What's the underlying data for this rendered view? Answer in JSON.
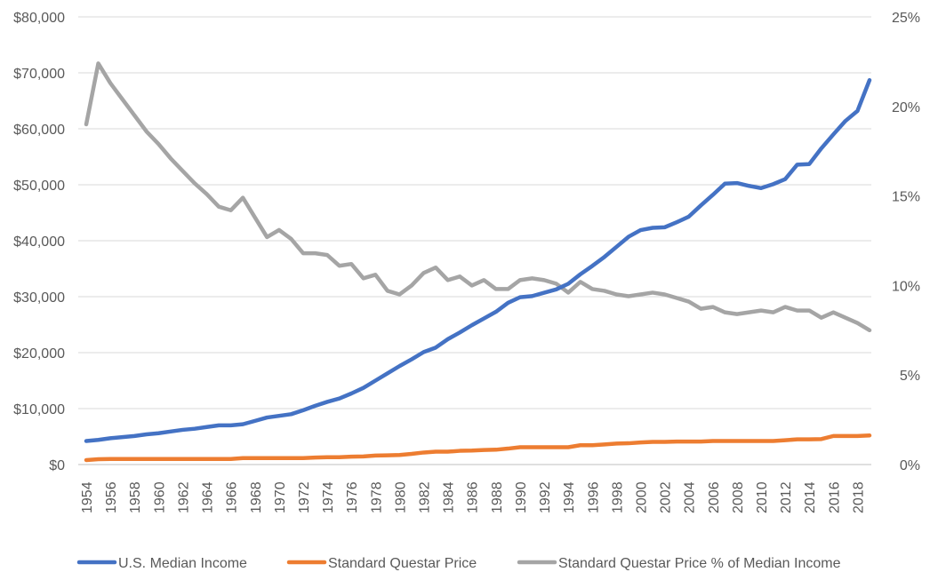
{
  "chart_data": {
    "type": "line",
    "title": "",
    "xlabel": "",
    "ylabel_left": "",
    "ylabel_right": "",
    "x": [
      1954,
      1955,
      1956,
      1957,
      1958,
      1959,
      1960,
      1961,
      1962,
      1963,
      1964,
      1965,
      1966,
      1967,
      1968,
      1969,
      1970,
      1971,
      1972,
      1973,
      1974,
      1975,
      1976,
      1977,
      1978,
      1979,
      1980,
      1981,
      1982,
      1983,
      1984,
      1985,
      1986,
      1987,
      1988,
      1989,
      1990,
      1991,
      1992,
      1993,
      1994,
      1995,
      1996,
      1997,
      1998,
      1999,
      2000,
      2001,
      2002,
      2003,
      2004,
      2005,
      2006,
      2007,
      2008,
      2009,
      2010,
      2011,
      2012,
      2013,
      2014,
      2015,
      2016,
      2017,
      2018,
      2019
    ],
    "x_tick_labels": [
      "1954",
      "1956",
      "1958",
      "1960",
      "1962",
      "1964",
      "1966",
      "1968",
      "1970",
      "1972",
      "1974",
      "1976",
      "1978",
      "1980",
      "1982",
      "1984",
      "1986",
      "1988",
      "1990",
      "1992",
      "1994",
      "1996",
      "1998",
      "2000",
      "2002",
      "2004",
      "2006",
      "2008",
      "2010",
      "2012",
      "2014",
      "2016",
      "2018"
    ],
    "y_left": {
      "lim": [
        0,
        80000
      ],
      "ticks": [
        0,
        10000,
        20000,
        30000,
        40000,
        50000,
        60000,
        70000,
        80000
      ],
      "tick_labels": [
        "$0",
        "$10,000",
        "$20,000",
        "$30,000",
        "$40,000",
        "$50,000",
        "$60,000",
        "$70,000",
        "$80,000"
      ]
    },
    "y_right": {
      "lim": [
        0,
        0.25
      ],
      "ticks": [
        0,
        0.05,
        0.1,
        0.15,
        0.2,
        0.25
      ],
      "tick_labels": [
        "0%",
        "5%",
        "10%",
        "15%",
        "20%",
        "25%"
      ]
    },
    "grid": true,
    "legend_position": "bottom",
    "series": [
      {
        "name": "U.S. Median Income",
        "axis": "left",
        "color": "#4472c4",
        "values": [
          4200,
          4400,
          4700,
          4900,
          5100,
          5400,
          5600,
          5900,
          6200,
          6400,
          6700,
          7000,
          7000,
          7200,
          7800,
          8400,
          8700,
          9000,
          9700,
          10500,
          11200,
          11800,
          12700,
          13700,
          15000,
          16300,
          17600,
          18800,
          20100,
          20900,
          22400,
          23600,
          24900,
          26100,
          27300,
          28900,
          29900,
          30100,
          30700,
          31300,
          32300,
          34000,
          35500,
          37100,
          38900,
          40700,
          41900,
          42300,
          42400,
          43300,
          44300,
          46300,
          48200,
          50200,
          50300,
          49800,
          49400,
          50100,
          51000,
          53600,
          53700,
          56500,
          59000,
          61400,
          63200,
          68700
        ]
      },
      {
        "name": "Standard Questar Price",
        "axis": "left",
        "color": "#ed7d31",
        "values": [
          800,
          950,
          1000,
          1000,
          1000,
          1000,
          1000,
          1000,
          1000,
          1000,
          1000,
          1000,
          1000,
          1150,
          1150,
          1150,
          1150,
          1150,
          1150,
          1250,
          1300,
          1300,
          1400,
          1450,
          1600,
          1650,
          1700,
          1900,
          2150,
          2300,
          2300,
          2450,
          2500,
          2600,
          2650,
          2850,
          3100,
          3100,
          3100,
          3100,
          3100,
          3450,
          3450,
          3600,
          3750,
          3800,
          3950,
          4050,
          4050,
          4100,
          4100,
          4100,
          4200,
          4200,
          4200,
          4200,
          4200,
          4200,
          4350,
          4500,
          4500,
          4550,
          5100,
          5100,
          5100,
          5200
        ]
      },
      {
        "name": "Standard Questar Price % of Median Income",
        "axis": "right",
        "color": "#a5a5a5",
        "values": [
          0.19,
          0.224,
          0.213,
          0.204,
          0.195,
          0.186,
          0.179,
          0.171,
          0.164,
          0.157,
          0.151,
          0.144,
          0.142,
          0.149,
          0.138,
          0.127,
          0.131,
          0.126,
          0.118,
          0.118,
          0.117,
          0.111,
          0.112,
          0.104,
          0.106,
          0.097,
          0.095,
          0.1,
          0.107,
          0.11,
          0.103,
          0.105,
          0.1,
          0.103,
          0.098,
          0.098,
          0.103,
          0.104,
          0.103,
          0.101,
          0.096,
          0.102,
          0.098,
          0.097,
          0.095,
          0.094,
          0.095,
          0.096,
          0.095,
          0.093,
          0.091,
          0.087,
          0.088,
          0.085,
          0.084,
          0.085,
          0.086,
          0.085,
          0.088,
          0.086,
          0.086,
          0.082,
          0.085,
          0.082,
          0.079,
          0.075
        ]
      }
    ]
  }
}
